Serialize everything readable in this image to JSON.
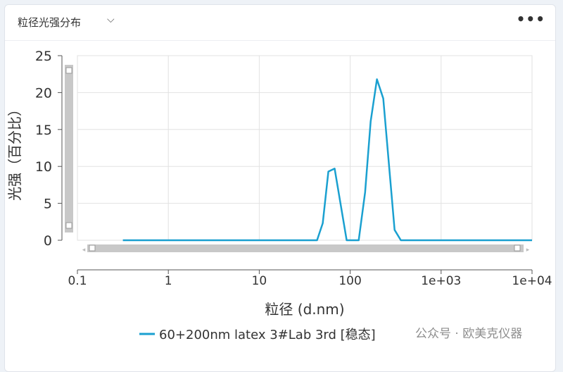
{
  "header": {
    "title": "粒径光强分布",
    "chevron_icon": "chevron-down-icon",
    "more_icon": "more-horizontal-icon",
    "more_label": "•••"
  },
  "chart_data": {
    "type": "line",
    "title": "",
    "xlabel": "粒径 (d.nm)",
    "ylabel": "光强（百分比）",
    "xscale": "log",
    "xlim": [
      0.1,
      10000
    ],
    "ylim": [
      0,
      25
    ],
    "xticks": [
      "0.1",
      "1",
      "10",
      "100",
      "1e+03",
      "1e+04"
    ],
    "xtick_values": [
      0.1,
      1,
      10,
      100,
      1000,
      10000
    ],
    "yticks": [
      "0",
      "5",
      "10",
      "15",
      "20",
      "25"
    ],
    "ytick_values": [
      0,
      5,
      10,
      15,
      20,
      25
    ],
    "grid": true,
    "legend": "bottom",
    "color": "#1aa0d0",
    "series": [
      {
        "name": "60+200nm latex 3#Lab 3rd [稳态]",
        "x": [
          0.316,
          43.2,
          49.9,
          57.6,
          67.5,
          91.5,
          124,
          146,
          168,
          197,
          231,
          308,
          361,
          10000
        ],
        "y": [
          0,
          0,
          2.3,
          9.3,
          9.7,
          0,
          0,
          6.5,
          16.1,
          21.8,
          19.2,
          1.4,
          0,
          0
        ]
      }
    ]
  },
  "watermark": "公众号 · 欧美克仪器"
}
